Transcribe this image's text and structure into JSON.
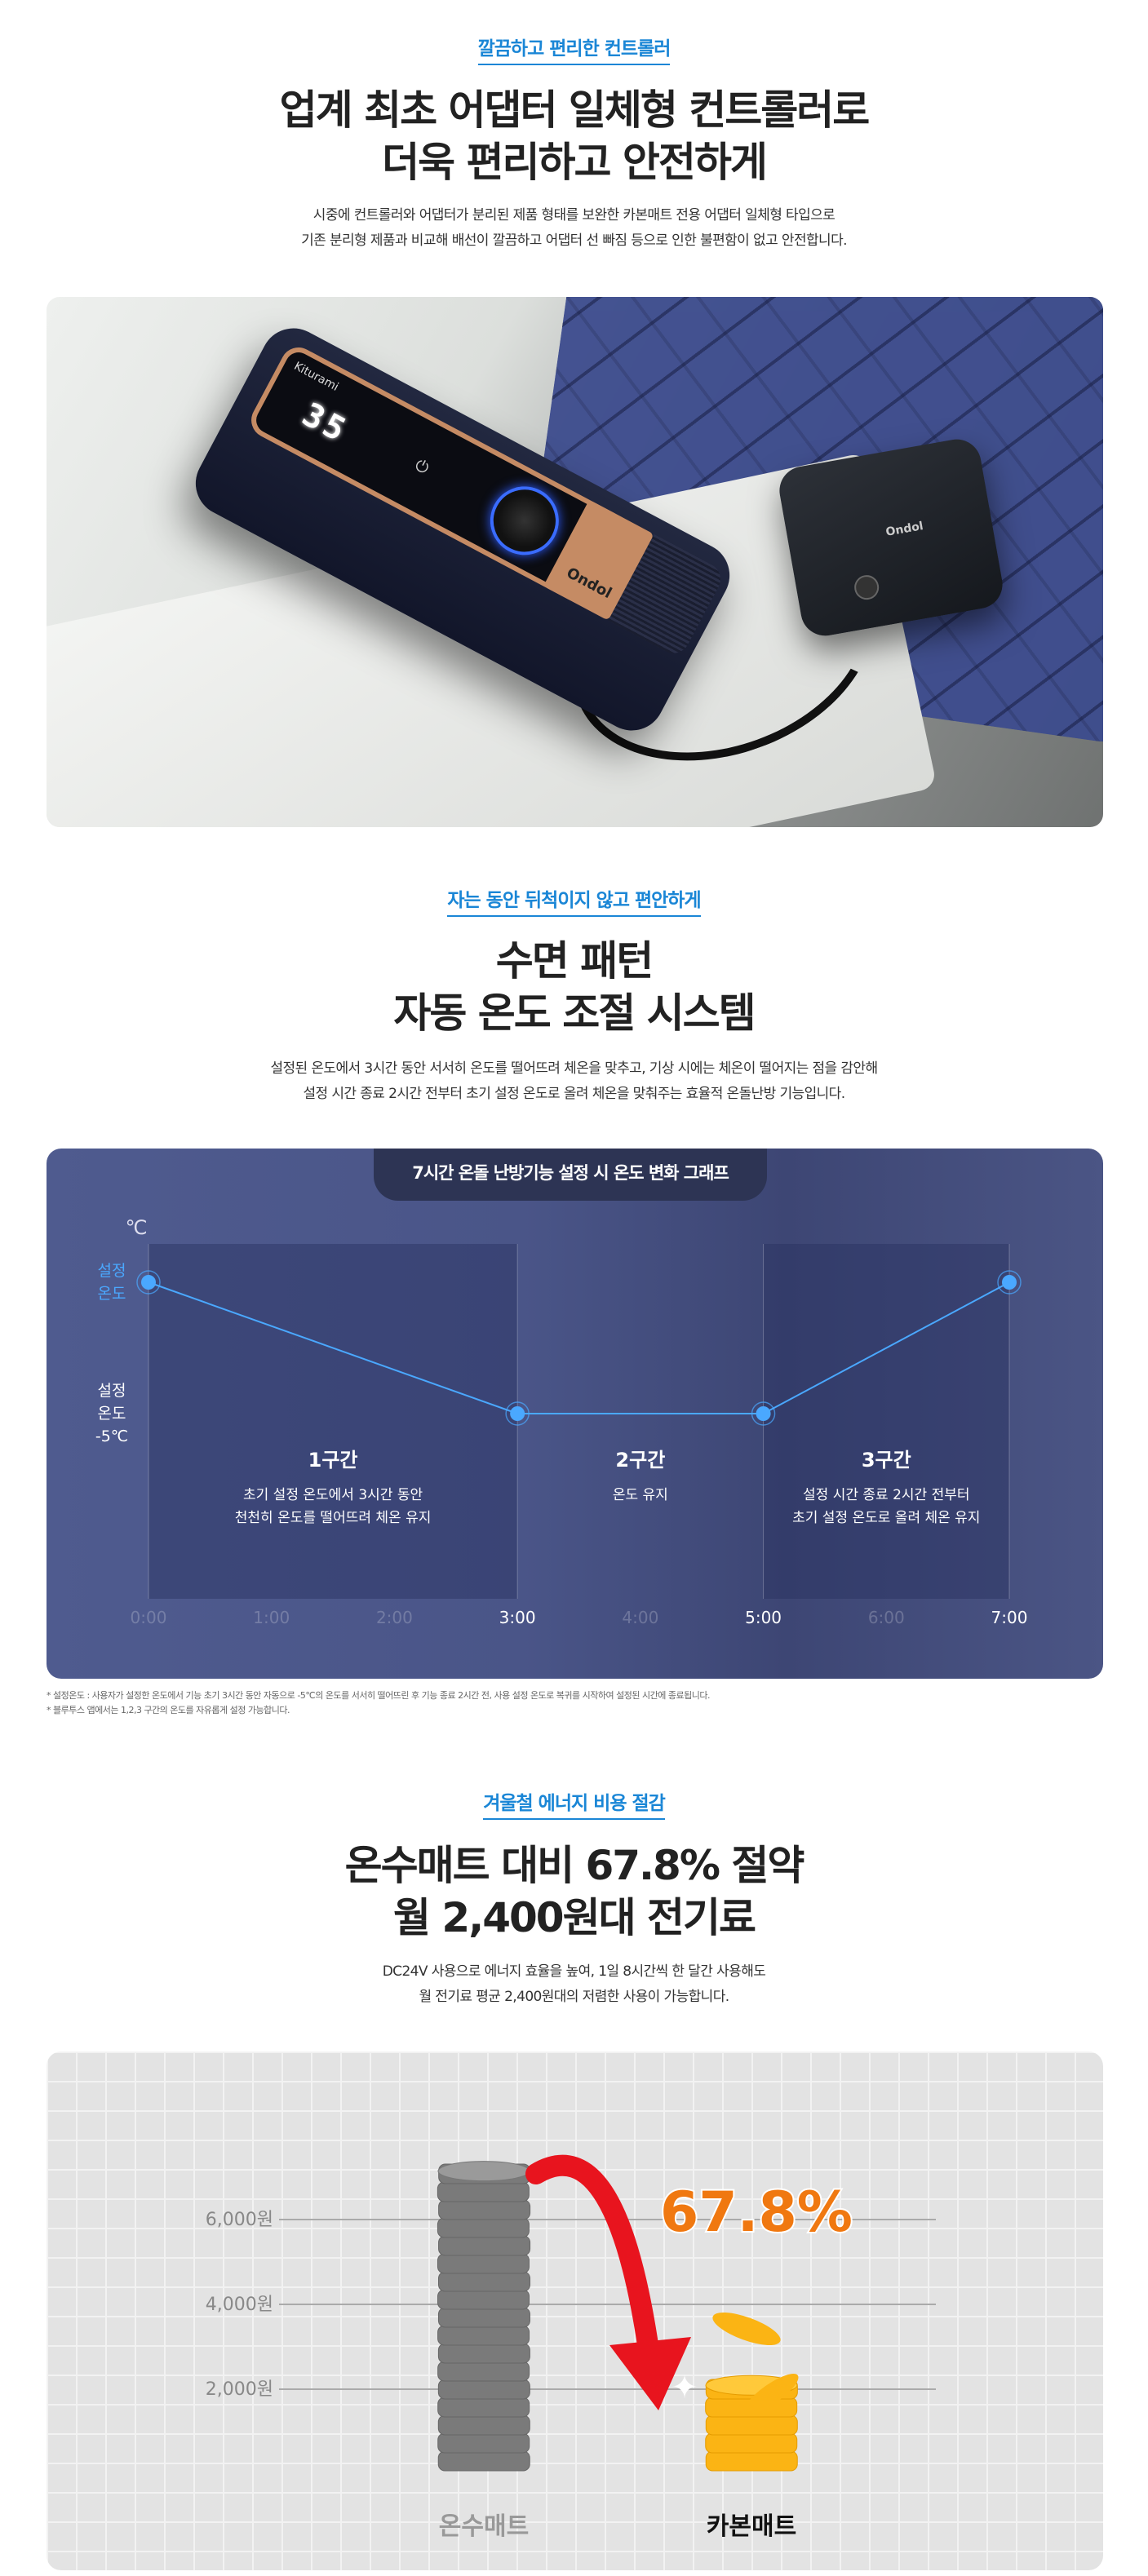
{
  "section1": {
    "label": "깔끔하고 편리한 컨트롤러",
    "title_lines": [
      "업계 최초 어댑터 일체형 컨트롤러로",
      "더욱 편리하고 안전하게"
    ],
    "desc_lines": [
      "시중에 컨트롤러와 어댑터가 분리된 제품 형태를 보완한 카본매트 전용 어댑터 일체형 타입으로",
      "기존 분리형 제품과 비교해 배선이 깔끔하고 어댑터 선 빠짐 등으로 인한 불편함이 없고 안전합니다."
    ],
    "photo": {
      "brand_top": "Kiturami",
      "brand_bottom": "Ondol",
      "pad_brand": "Ondol",
      "display": "35"
    }
  },
  "section2": {
    "label": "자는 동안 뒤척이지 않고 편안하게",
    "title_lines": [
      "수면 패턴",
      "자동 온도 조절 시스템"
    ],
    "desc_lines": [
      "설정된 온도에서 3시간 동안 서서히 온도를 떨어뜨려 체온을 맞추고, 기상 시에는 체온이 떨어지는 점을 감안해",
      "설정 시간 종료 2시간 전부터 초기 설정 온도로 올려 체온을 맞춰주는 효율적 온돌난방 기능입니다."
    ],
    "notes": [
      "* 설정온도 : 사용자가 설정한 온도에서 기능 초기 3시간 동안 자동으로 -5℃의 온도를 서서히 떨어뜨린 후 기능 종료 2시간 전, 사용 설정 온도로 복귀를 시작하여 설정된 시간에 종료됩니다.",
      "* 블루투스 앱에서는 1,2,3 구간의 온도를 자유롭게 설정 가능합니다."
    ]
  },
  "section3": {
    "label": "겨울철 에너지 비용 절감",
    "title_lines": [
      "온수매트 대비 67.8% 절약",
      "월 2,400원대 전기료"
    ],
    "desc_lines": [
      "DC24V 사용으로 에너지 효율을 높여, 1일 8시간씩 한 달간 사용해도",
      "월 전기료 평균 2,400원대의 저렴한 사용이 가능합니다."
    ]
  },
  "chart_data": [
    {
      "type": "line",
      "title": "7시간 온돌 난방기능 설정 시 온도 변화 그래프",
      "ylabel": "℃",
      "y_tick_labels": [
        {
          "value": 0,
          "label": "설정\n온도"
        },
        {
          "value": -5,
          "label": "설정\n온도\n-5℃"
        }
      ],
      "x_ticks": [
        "0:00",
        "1:00",
        "2:00",
        "3:00",
        "4:00",
        "5:00",
        "6:00",
        "7:00"
      ],
      "highlighted_ticks": [
        "3:00",
        "5:00",
        "7:00"
      ],
      "x": [
        0,
        3,
        5,
        7
      ],
      "y": [
        0,
        -5,
        -5,
        0
      ],
      "xlim": [
        0,
        7
      ],
      "ylim": [
        -7,
        1
      ],
      "zones": [
        {
          "name": "1구간",
          "desc_lines": [
            "초기 설정 온도에서 3시간 동안",
            "천천히 온도를 떨어뜨려 체온 유지"
          ],
          "range": [
            0,
            3
          ]
        },
        {
          "name": "2구간",
          "desc_lines": [
            "온도 유지"
          ],
          "range": [
            3,
            5
          ]
        },
        {
          "name": "3구간",
          "desc_lines": [
            "설정 시간 종료 2시간 전부터",
            "초기 설정 온도로 올려 체온 유지"
          ],
          "range": [
            5,
            7
          ]
        }
      ],
      "colors": {
        "line": "#4aa8ff",
        "accent_label": "#4aa8ff"
      }
    },
    {
      "type": "bar",
      "categories": [
        "온수매트",
        "카본매트"
      ],
      "values": [
        7450,
        2400
      ],
      "y_ticks": [
        2000,
        4000,
        6000
      ],
      "y_tick_labels": [
        "2,000원",
        "4,000원",
        "6,000원"
      ],
      "annotation": "67.8%",
      "colors": {
        "온수매트": "#7a7a7a",
        "카본매트": "#fbb414",
        "arrow": "#e8141e"
      }
    }
  ]
}
